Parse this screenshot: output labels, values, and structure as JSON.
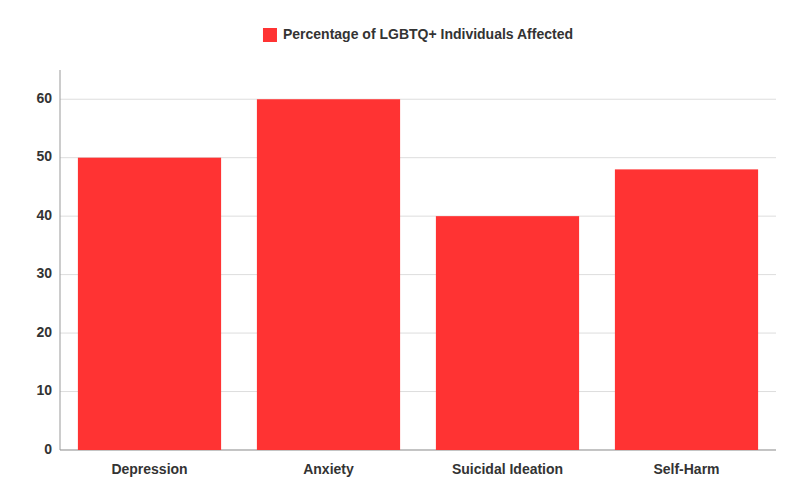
{
  "chart_data": {
    "type": "bar",
    "categories": [
      "Depression",
      "Anxiety",
      "Suicidal Ideation",
      "Self-Harm"
    ],
    "series": [
      {
        "name": "Percentage of LGBTQ+ Individuals Affected",
        "color": "#FF3333",
        "values": [
          50,
          60,
          40,
          48
        ]
      }
    ],
    "ylim": [
      0,
      65
    ],
    "yticks": [
      0,
      10,
      20,
      30,
      40,
      50,
      60
    ],
    "grid": true,
    "legend": "top"
  }
}
